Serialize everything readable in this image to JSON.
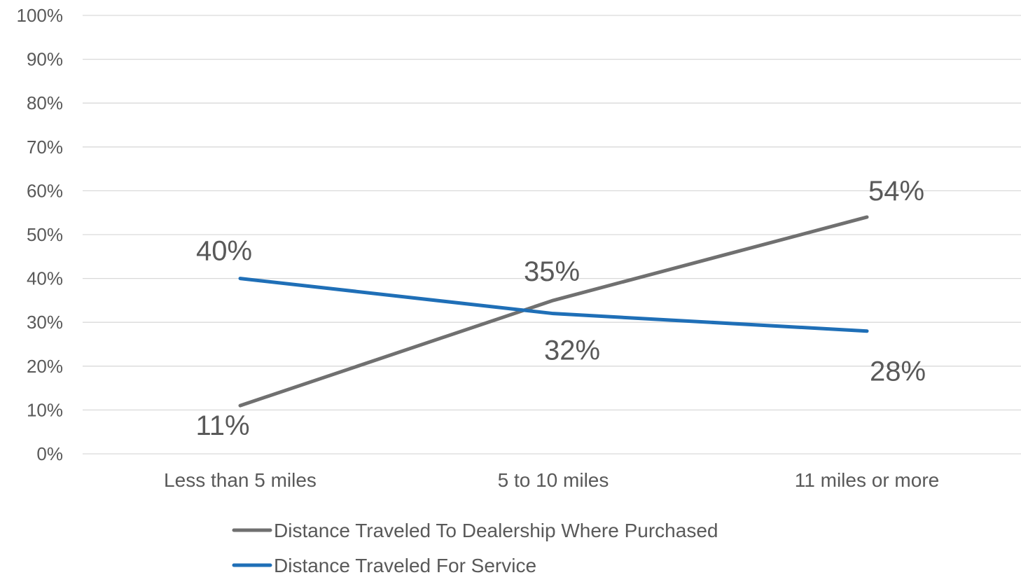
{
  "chart_data": {
    "type": "line",
    "categories": [
      "Less than 5 miles",
      "5 to 10 miles",
      "11 miles or more"
    ],
    "series": [
      {
        "name": "Distance Traveled To Dealership Where Purchased",
        "values": [
          11,
          35,
          54
        ],
        "labels": [
          "11%",
          "35%",
          "54%"
        ],
        "color": "#707070"
      },
      {
        "name": "Distance Traveled For Service",
        "values": [
          40,
          32,
          28
        ],
        "labels": [
          "40%",
          "32%",
          "28%"
        ],
        "color": "#1f6fb7"
      }
    ],
    "y_ticks": [
      "0%",
      "10%",
      "20%",
      "30%",
      "40%",
      "50%",
      "60%",
      "70%",
      "80%",
      "90%",
      "100%"
    ],
    "ylim": [
      0,
      100
    ],
    "grid": true,
    "legend_position": "bottom"
  }
}
